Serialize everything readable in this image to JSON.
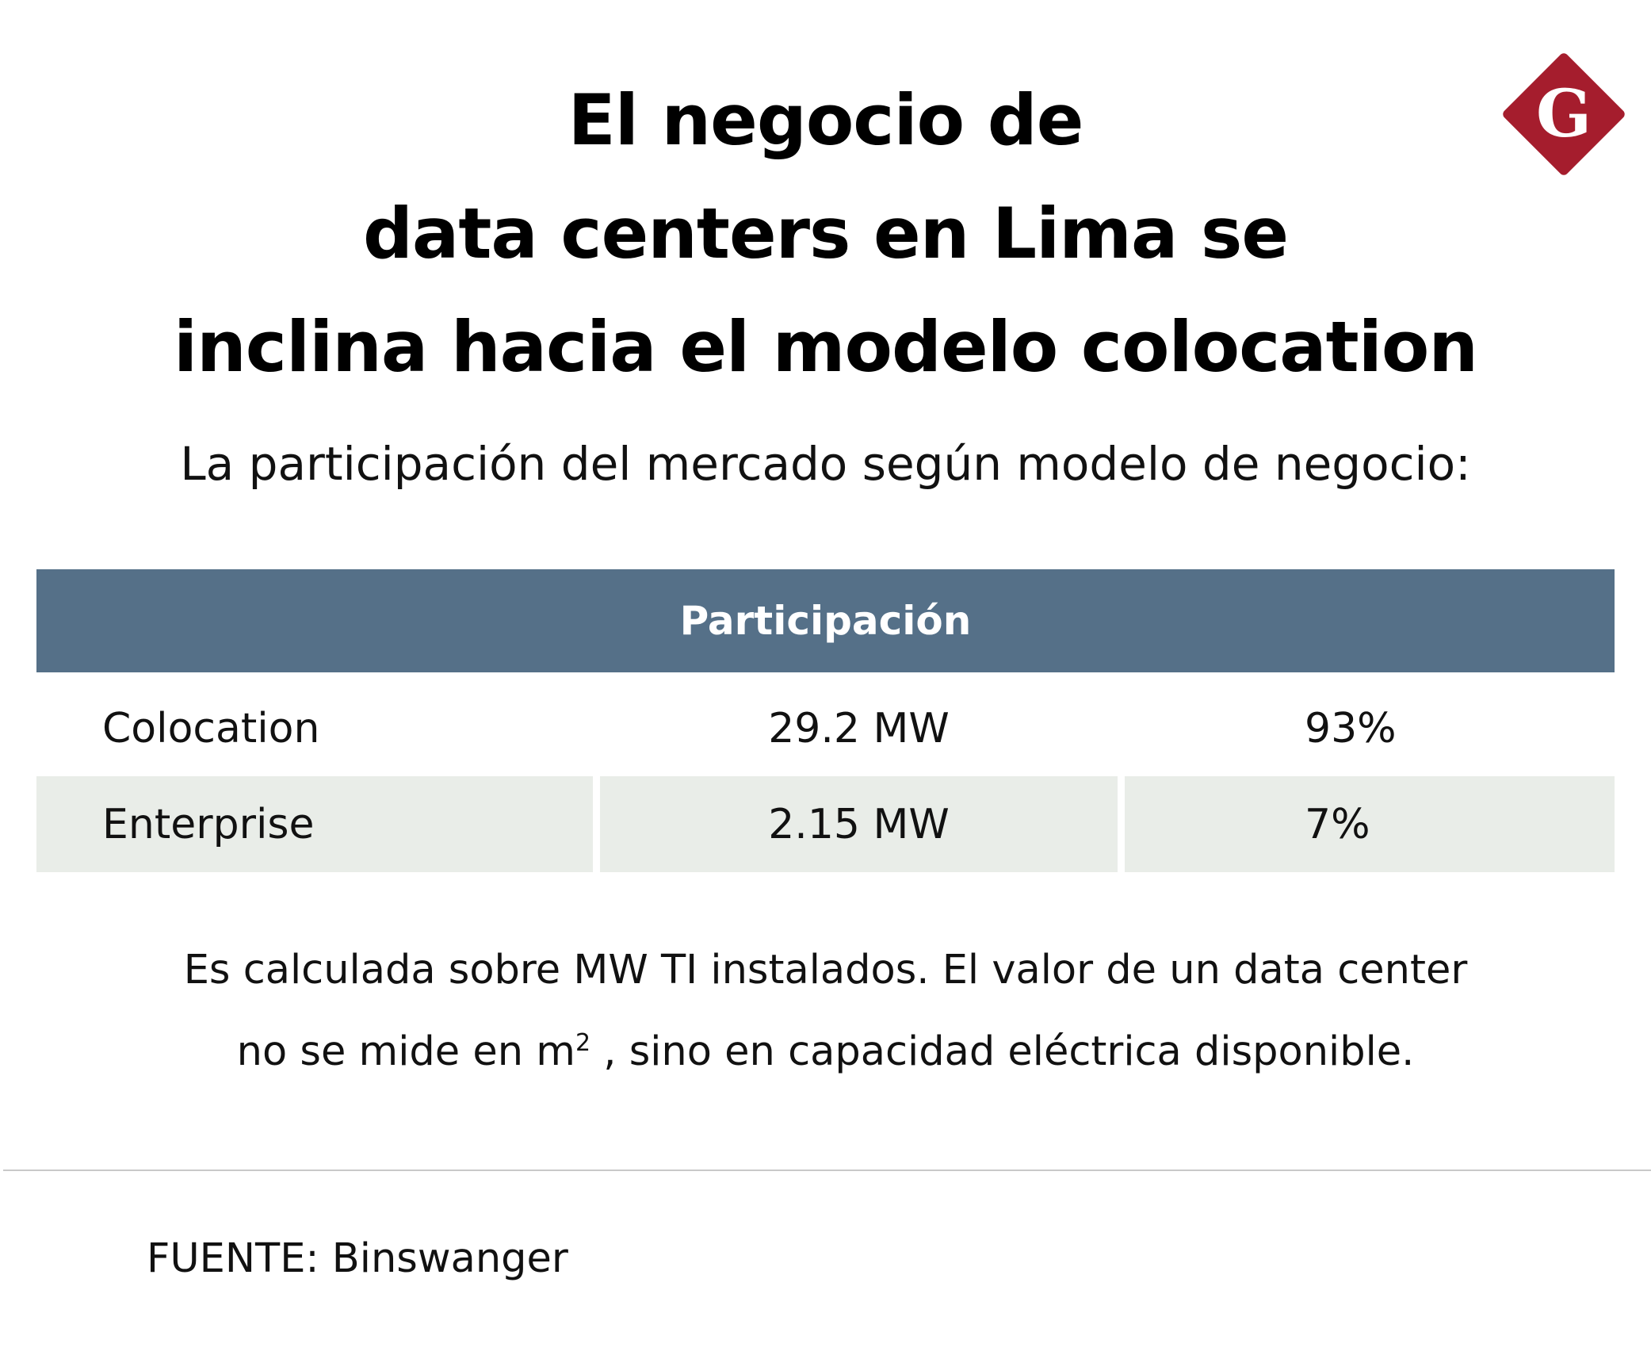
{
  "title_lines": [
    "El negocio de",
    "data centers en Lima se",
    "inclina hacia el modelo colocation"
  ],
  "logo": {
    "letter": "G",
    "color": "#a51d2d"
  },
  "subtitle": "La participación del mercado según modelo de negocio:",
  "chart_data": {
    "type": "table",
    "header": "Participación",
    "rows": [
      {
        "label": "Colocation",
        "capacity": "29.2 MW",
        "share": "93%"
      },
      {
        "label": "Enterprise",
        "capacity": "2.15 MW",
        "share": "7%"
      }
    ],
    "capacity_mw": [
      29.2,
      2.15
    ],
    "share_percent": [
      93,
      7
    ]
  },
  "note": {
    "line1": "Es calculada sobre MW TI instalados. El valor de un data center",
    "line2_before": "no se mide en m",
    "line2_sup": "2",
    "line2_after": " , sino en capacidad eléctrica disponible."
  },
  "source": "FUENTE: Binswanger",
  "colors": {
    "header_bg": "#557088",
    "shaded_row": "#e9ede8",
    "logo": "#a51d2d"
  }
}
